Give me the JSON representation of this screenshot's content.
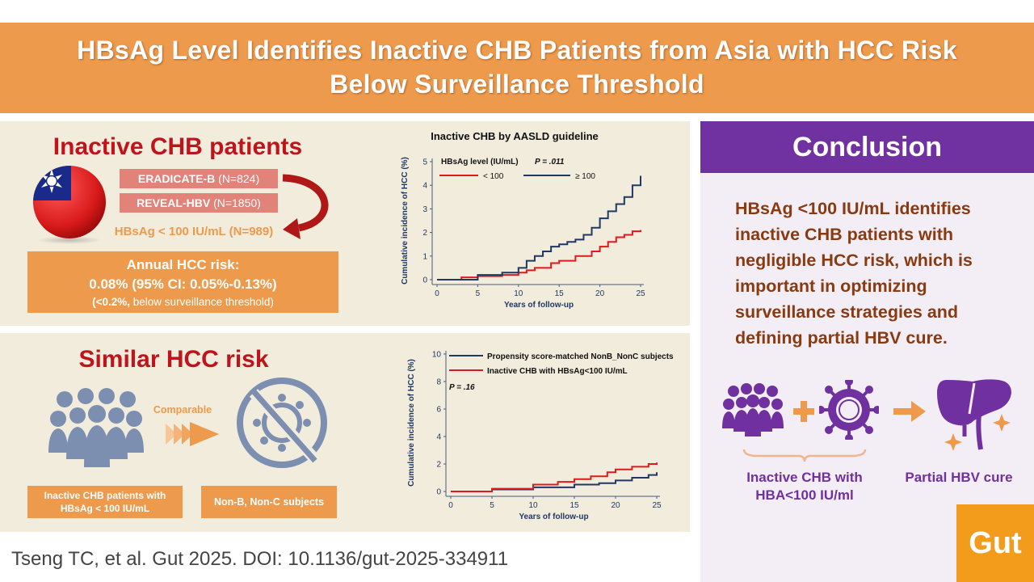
{
  "title": {
    "line1": "HBsAg Level Identifies Inactive CHB Patients from Asia with HCC Risk",
    "line2": "Below Surveillance Threshold"
  },
  "top_left": {
    "heading": "Inactive CHB patients",
    "cohorts": [
      {
        "name": "ERADICATE-B",
        "n": "(N=824)"
      },
      {
        "name": "REVEAL-HBV",
        "n": "(N=1850)"
      }
    ],
    "combined": "HBsAg < 100 IU/mL (N=989)",
    "risk_box": {
      "line1": "Annual HCC risk:",
      "line2": "0.08% (95% CI: 0.05%-0.13%)",
      "line3_bold": "(<0.2%,",
      "line3_rest": " below surveillance threshold)"
    }
  },
  "bottom_left": {
    "heading": "Similar HCC risk",
    "comparable": "Comparable",
    "left_box": {
      "line1": "Inactive CHB patients with",
      "line2": "HBsAg < 100 IU/mL"
    },
    "right_box": "Non-B, Non-C subjects"
  },
  "conclusion": {
    "heading": "Conclusion",
    "lines": [
      "HBsAg <100 IU/mL identifies",
      "inactive CHB patients with",
      "negligible HCC risk, which is",
      "important in optimizing",
      "surveillance strategies and",
      "defining partial HBV cure."
    ],
    "label_left": {
      "line1": "Inactive CHB with",
      "line2": "HBA<100 IU/ml"
    },
    "label_right": "Partial HBV cure"
  },
  "logo": "Gut",
  "citation": "Tseng TC, et al. Gut 2025. DOI: 10.1136/gut-2025-334911",
  "colors": {
    "orange": "#ee9a4c",
    "red": "#e0191f",
    "navy": "#1f3864",
    "purple": "#7030a0",
    "beige": "#f2ecdc"
  },
  "chart_data": [
    {
      "type": "line",
      "title": "Inactive CHB by AASLD guideline",
      "xlabel": "Years of follow-up",
      "ylabel": "Cumulative incidence of HCC (%)",
      "xlim": [
        0,
        25
      ],
      "ylim": [
        0,
        5
      ],
      "xticks": [
        "0",
        "5",
        "10",
        "15",
        "20",
        "25"
      ],
      "yticks": [
        "0",
        "1",
        "2",
        "3",
        "4",
        "5"
      ],
      "legend_title": "HBsAg level (IU/mL)",
      "pvalue": "P = .011",
      "series": [
        {
          "name": "< 100",
          "color": "#e0191f",
          "x": [
            0,
            3,
            5,
            8,
            10,
            11,
            12,
            14,
            15,
            17,
            19,
            20,
            21,
            22,
            23,
            24,
            25
          ],
          "y": [
            0,
            0.1,
            0.15,
            0.2,
            0.3,
            0.4,
            0.5,
            0.7,
            0.8,
            1.0,
            1.2,
            1.4,
            1.6,
            1.8,
            1.9,
            2.05,
            2.1
          ]
        },
        {
          "name": "≥ 100",
          "color": "#1f3864",
          "x": [
            0,
            5,
            8,
            10,
            11,
            12,
            13,
            14,
            15,
            16,
            17,
            18,
            19,
            20,
            21,
            22,
            23,
            24,
            25
          ],
          "y": [
            0,
            0.2,
            0.3,
            0.5,
            0.8,
            1.0,
            1.2,
            1.4,
            1.5,
            1.6,
            1.7,
            1.9,
            2.2,
            2.6,
            2.9,
            3.2,
            3.5,
            4.0,
            4.4
          ]
        }
      ]
    },
    {
      "type": "line",
      "title": "",
      "xlabel": "Years of follow-up",
      "ylabel": "Cumulative incidence of HCC (%)",
      "xlim": [
        0,
        25
      ],
      "ylim": [
        0,
        10
      ],
      "xticks": [
        "0",
        "5",
        "10",
        "15",
        "20",
        "25"
      ],
      "yticks": [
        "0",
        "2",
        "4",
        "6",
        "8",
        "10"
      ],
      "pvalue": "P = .16",
      "series": [
        {
          "name": "Propensity score-matched NonB_NonC subjects",
          "color": "#1f3864",
          "x": [
            0,
            5,
            10,
            15,
            18,
            20,
            22,
            24,
            25
          ],
          "y": [
            0,
            0.15,
            0.3,
            0.5,
            0.6,
            0.8,
            1.0,
            1.2,
            1.4
          ]
        },
        {
          "name": "Inactive CHB with HBsAg<100 IU/mL",
          "color": "#e0191f",
          "x": [
            0,
            5,
            10,
            13,
            15,
            17,
            19,
            20,
            22,
            24,
            25
          ],
          "y": [
            0,
            0.2,
            0.5,
            0.7,
            0.9,
            1.1,
            1.4,
            1.6,
            1.8,
            2.0,
            2.1
          ]
        }
      ]
    }
  ]
}
